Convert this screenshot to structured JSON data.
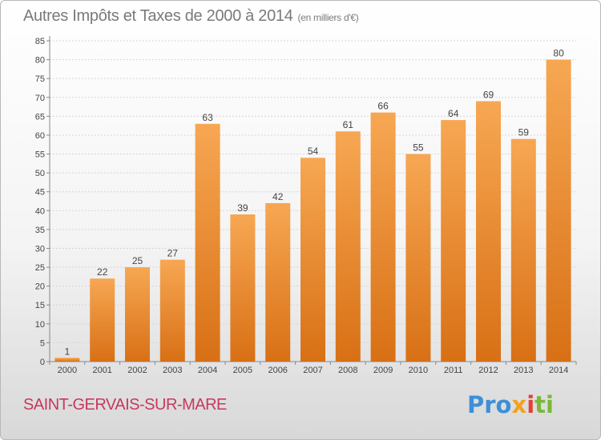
{
  "title": "Autres Impôts et Taxes de 2000 à 2014",
  "subtitle": "(en milliers d'€)",
  "commune": "SAINT-GERVAIS-SUR-MARE",
  "logo": {
    "p1": "Pro",
    "p2": "x",
    "p3": "i",
    "p4": "ti"
  },
  "colors": {
    "bar_top": "#f7a753",
    "bar_bottom": "#d87015",
    "commune": "#c8385e"
  },
  "chart_data": {
    "type": "bar",
    "categories": [
      "2000",
      "2001",
      "2002",
      "2003",
      "2004",
      "2005",
      "2006",
      "2007",
      "2008",
      "2009",
      "2010",
      "2011",
      "2012",
      "2013",
      "2014"
    ],
    "values": [
      1,
      22,
      25,
      27,
      63,
      39,
      42,
      54,
      61,
      66,
      55,
      64,
      69,
      59,
      80
    ],
    "title": "Autres Impôts et Taxes de 2000 à 2014",
    "subtitle": "(en milliers d'€)",
    "ylim": [
      0,
      85
    ],
    "yticks": [
      0,
      5,
      10,
      15,
      20,
      25,
      30,
      35,
      40,
      45,
      50,
      55,
      60,
      65,
      70,
      75,
      80,
      85
    ],
    "grid": true,
    "legend": "none"
  }
}
